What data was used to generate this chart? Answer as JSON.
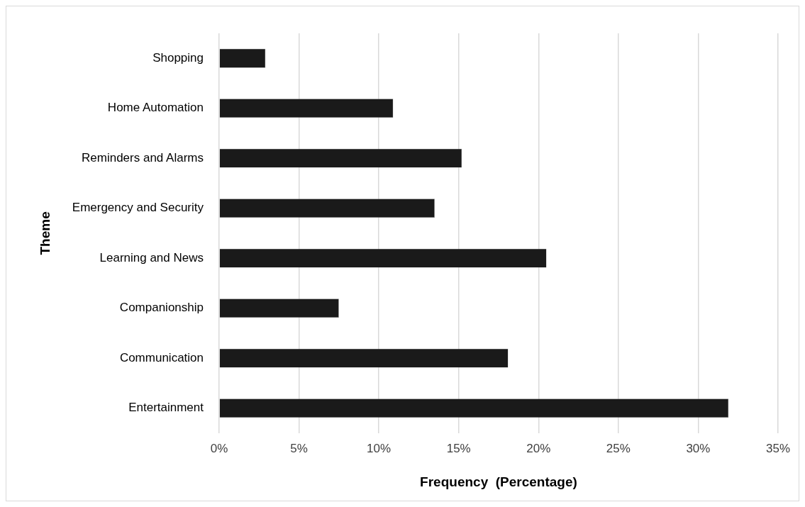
{
  "chart_data": {
    "type": "bar",
    "orientation": "horizontal",
    "xlabel": "Frequency  (Percentage)",
    "ylabel": "Theme",
    "categories": [
      "Shopping",
      "Home Automation",
      "Reminders and Alarms",
      "Emergency and Security",
      "Learning and News",
      "Companionship",
      "Communication",
      "Entertainment"
    ],
    "values": [
      2.9,
      10.9,
      15.2,
      13.5,
      20.5,
      7.5,
      18.1,
      31.9
    ],
    "color": "#1a1a1a",
    "xlim": [
      0,
      35
    ],
    "xticks": [
      {
        "value": 0,
        "label": "0%"
      },
      {
        "value": 5,
        "label": "5%"
      },
      {
        "value": 10,
        "label": "10%"
      },
      {
        "value": 15,
        "label": "15%"
      },
      {
        "value": 20,
        "label": "20%"
      },
      {
        "value": 25,
        "label": "25%"
      },
      {
        "value": 30,
        "label": "30%"
      },
      {
        "value": 35,
        "label": "35%"
      }
    ],
    "grid": "x"
  }
}
